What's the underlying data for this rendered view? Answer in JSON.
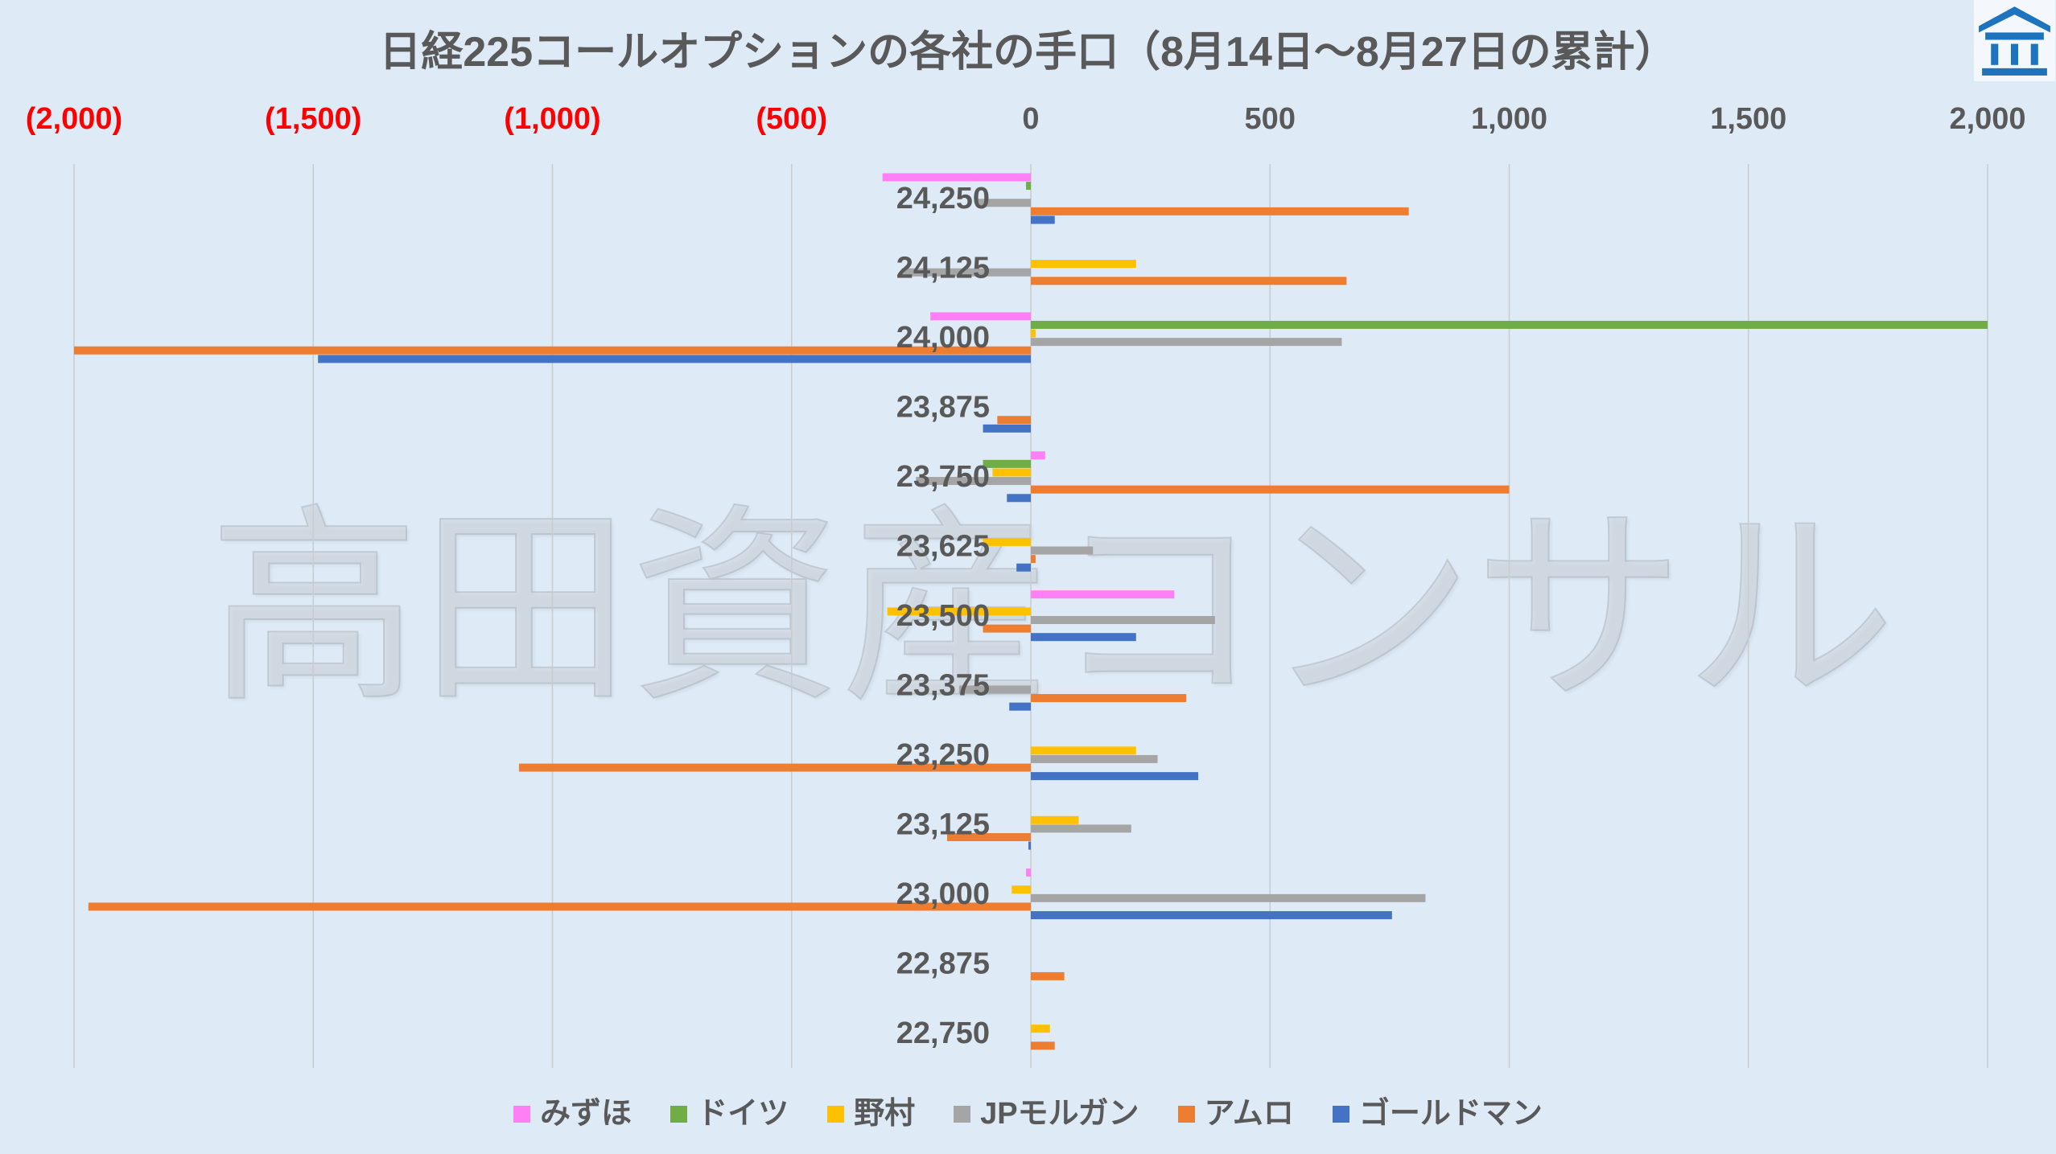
{
  "watermark": "高田資産コンサル",
  "colors": {
    "background": "#DEEBF7",
    "text": "#595959",
    "negative_tick": "#FF0000",
    "gridline": "#C9CDD2",
    "logo": "#1E73BE"
  },
  "icons": {
    "logo": "company-logo-icon"
  },
  "chart_data": {
    "type": "bar",
    "orientation": "horizontal",
    "title": "日経225コールオプションの各社の手口（8月14日～8月27日の累計）",
    "categories": [
      "24,250",
      "24,125",
      "24,000",
      "23,875",
      "23,750",
      "23,625",
      "23,500",
      "23,375",
      "23,250",
      "23,125",
      "23,000",
      "22,875",
      "22,750"
    ],
    "xlim": [
      -2000,
      2000
    ],
    "x_ticks": [
      {
        "value": -2000,
        "label": "(2,000)"
      },
      {
        "value": -1500,
        "label": "(1,500)"
      },
      {
        "value": -1000,
        "label": "(1,000)"
      },
      {
        "value": -500,
        "label": "(500)"
      },
      {
        "value": 0,
        "label": "0"
      },
      {
        "value": 500,
        "label": "500"
      },
      {
        "value": 1000,
        "label": "1,000"
      },
      {
        "value": 1500,
        "label": "1,500"
      },
      {
        "value": 2000,
        "label": "2,000"
      }
    ],
    "grid": true,
    "legend": "bottom",
    "series": [
      {
        "name": "みずほ",
        "color": "#FF80F4",
        "values": [
          -310,
          0,
          -210,
          0,
          30,
          0,
          300,
          0,
          0,
          0,
          -10,
          0,
          0
        ]
      },
      {
        "name": "ドイツ",
        "color": "#70AD47",
        "values": [
          -10,
          0,
          2000,
          0,
          -100,
          0,
          0,
          0,
          0,
          0,
          0,
          0,
          0
        ]
      },
      {
        "name": "野村",
        "color": "#FFC000",
        "values": [
          0,
          220,
          10,
          0,
          -80,
          -100,
          -300,
          0,
          220,
          100,
          -40,
          0,
          40
        ]
      },
      {
        "name": "JPモルガン",
        "color": "#A5A5A5",
        "values": [
          -110,
          -270,
          650,
          0,
          -240,
          130,
          385,
          -150,
          265,
          210,
          825,
          0,
          0
        ]
      },
      {
        "name": "アムロ",
        "color": "#ED7D31",
        "values": [
          790,
          660,
          -2000,
          -70,
          1000,
          10,
          -100,
          325,
          -1070,
          -175,
          -1970,
          70,
          50
        ]
      },
      {
        "name": "ゴールドマン",
        "color": "#4472C4",
        "values": [
          50,
          0,
          -1490,
          -100,
          -50,
          -30,
          220,
          -45,
          350,
          -5,
          755,
          0,
          0
        ]
      }
    ]
  }
}
